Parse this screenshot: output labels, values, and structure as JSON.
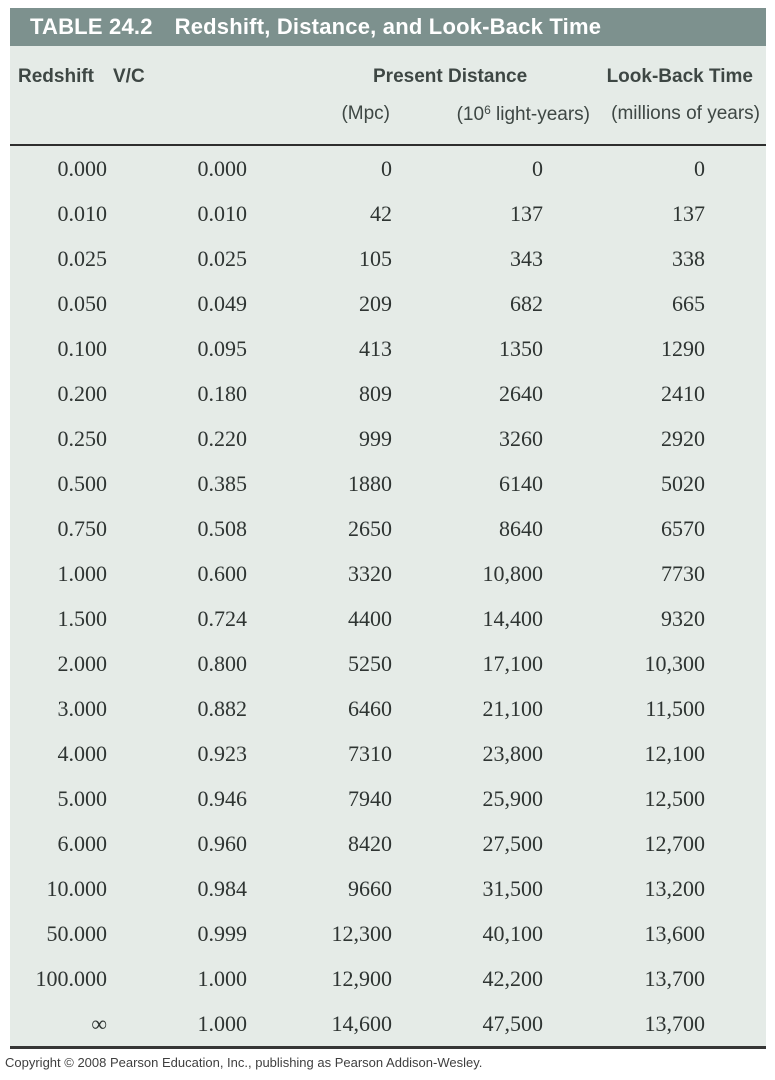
{
  "title_bar": {
    "label": "TABLE 24.2",
    "title": "Redshift, Distance, and Look-Back Time"
  },
  "columns": {
    "redshift": "Redshift",
    "v_over_c": "V/C",
    "present_distance": "Present Distance",
    "unit_mpc": "(Mpc)",
    "unit_ly_prefix": "(10",
    "unit_ly_sup": "6",
    "unit_ly_suffix": " light-years)",
    "look_back_time": "Look-Back Time",
    "unit_look_back": "(millions of years)"
  },
  "table": {
    "rows": [
      {
        "redshift": "0.000",
        "vc": "0.000",
        "mpc": "0",
        "ly": "0",
        "lookback": "0"
      },
      {
        "redshift": "0.010",
        "vc": "0.010",
        "mpc": "42",
        "ly": "137",
        "lookback": "137"
      },
      {
        "redshift": "0.025",
        "vc": "0.025",
        "mpc": "105",
        "ly": "343",
        "lookback": "338"
      },
      {
        "redshift": "0.050",
        "vc": "0.049",
        "mpc": "209",
        "ly": "682",
        "lookback": "665"
      },
      {
        "redshift": "0.100",
        "vc": "0.095",
        "mpc": "413",
        "ly": "1350",
        "lookback": "1290"
      },
      {
        "redshift": "0.200",
        "vc": "0.180",
        "mpc": "809",
        "ly": "2640",
        "lookback": "2410"
      },
      {
        "redshift": "0.250",
        "vc": "0.220",
        "mpc": "999",
        "ly": "3260",
        "lookback": "2920"
      },
      {
        "redshift": "0.500",
        "vc": "0.385",
        "mpc": "1880",
        "ly": "6140",
        "lookback": "5020"
      },
      {
        "redshift": "0.750",
        "vc": "0.508",
        "mpc": "2650",
        "ly": "8640",
        "lookback": "6570"
      },
      {
        "redshift": "1.000",
        "vc": "0.600",
        "mpc": "3320",
        "ly": "10,800",
        "lookback": "7730"
      },
      {
        "redshift": "1.500",
        "vc": "0.724",
        "mpc": "4400",
        "ly": "14,400",
        "lookback": "9320"
      },
      {
        "redshift": "2.000",
        "vc": "0.800",
        "mpc": "5250",
        "ly": "17,100",
        "lookback": "10,300"
      },
      {
        "redshift": "3.000",
        "vc": "0.882",
        "mpc": "6460",
        "ly": "21,100",
        "lookback": "11,500"
      },
      {
        "redshift": "4.000",
        "vc": "0.923",
        "mpc": "7310",
        "ly": "23,800",
        "lookback": "12,100"
      },
      {
        "redshift": "5.000",
        "vc": "0.946",
        "mpc": "7940",
        "ly": "25,900",
        "lookback": "12,500"
      },
      {
        "redshift": "6.000",
        "vc": "0.960",
        "mpc": "8420",
        "ly": "27,500",
        "lookback": "12,700"
      },
      {
        "redshift": "10.000",
        "vc": "0.984",
        "mpc": "9660",
        "ly": "31,500",
        "lookback": "13,200"
      },
      {
        "redshift": "50.000",
        "vc": "0.999",
        "mpc": "12,300",
        "ly": "40,100",
        "lookback": "13,600"
      },
      {
        "redshift": "100.000",
        "vc": "1.000",
        "mpc": "12,900",
        "ly": "42,200",
        "lookback": "13,700"
      },
      {
        "redshift": "∞",
        "vc": "1.000",
        "mpc": "14,600",
        "ly": "47,500",
        "lookback": "13,700"
      }
    ]
  },
  "footer": {
    "copyright": "Copyright © 2008 Pearson Education, Inc., publishing as Pearson Addison-Wesley."
  },
  "colors": {
    "title_band": "#7d918e",
    "panel_background": "#e5ebe7",
    "rule": "#2e2e2e",
    "header_text": "#3e4744",
    "data_text": "#2e3432"
  }
}
